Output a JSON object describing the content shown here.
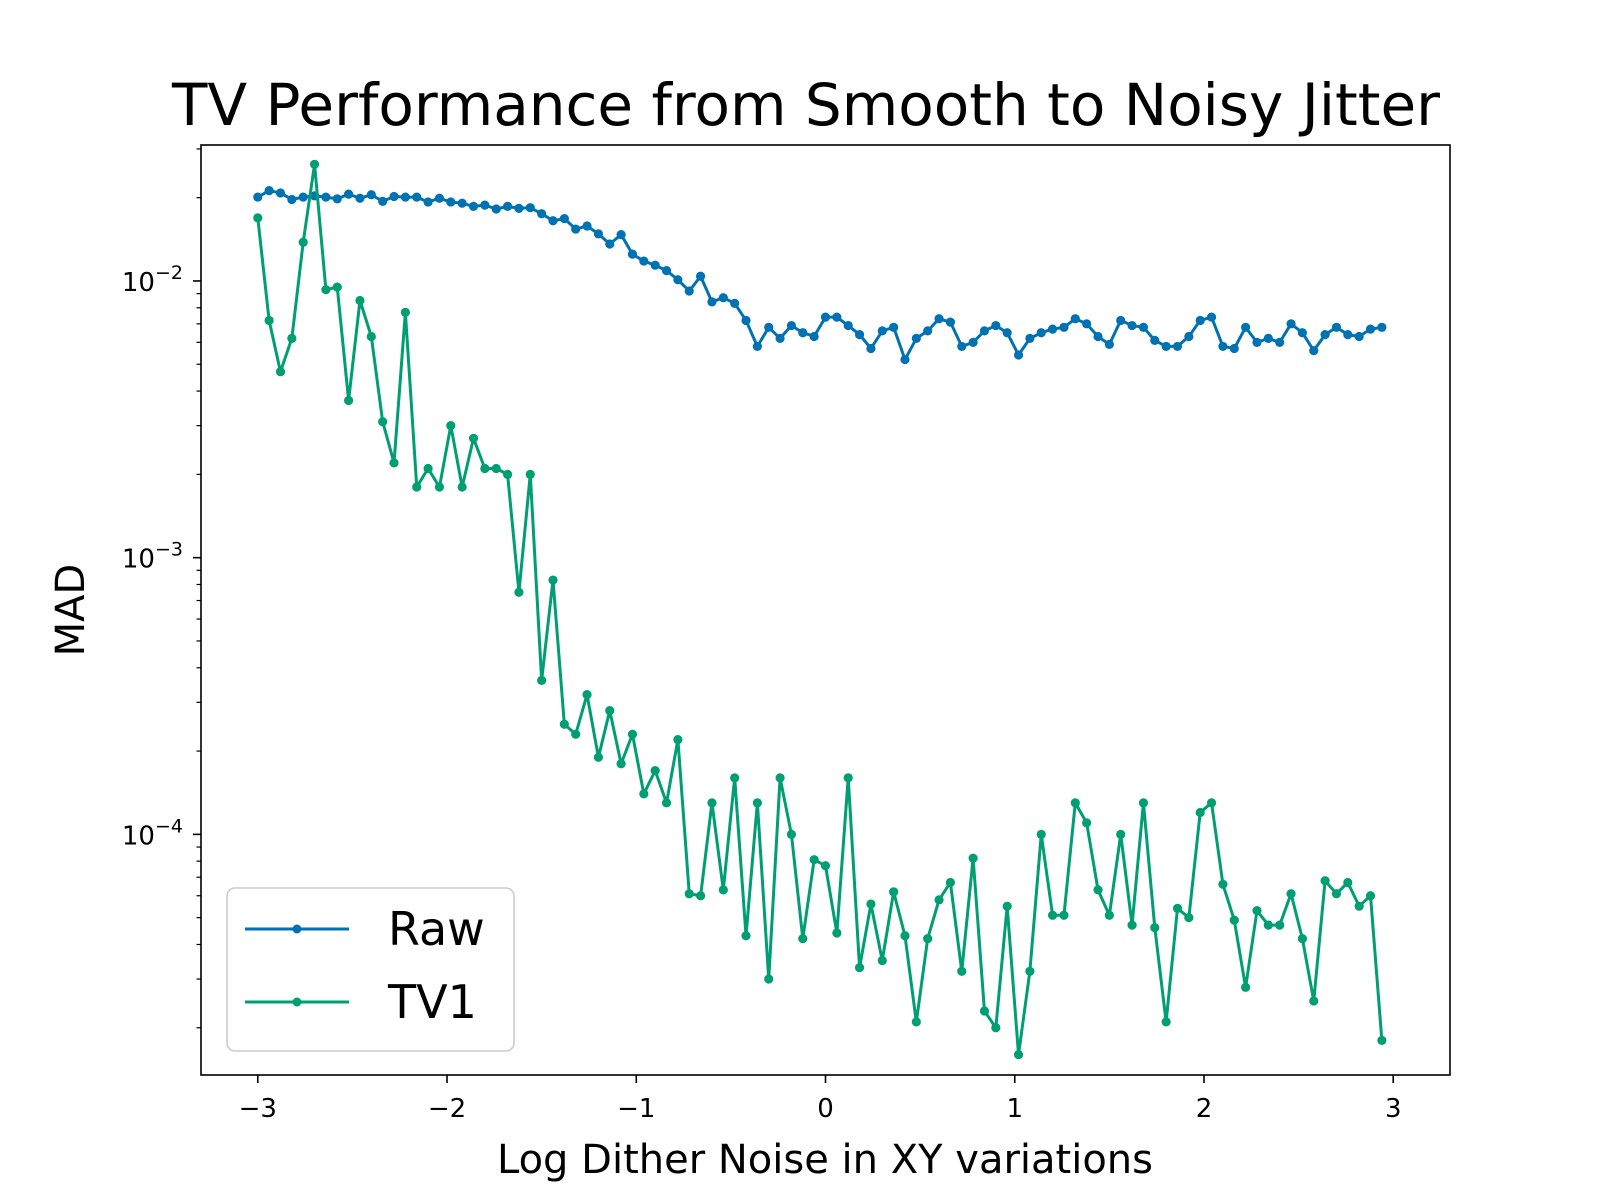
{
  "chart_data": {
    "type": "line",
    "title": "TV Performance from Smooth to Noisy Jitter",
    "xlabel": "Log Dither Noise in XY variations",
    "ylabel": "MAD",
    "yscale": "log",
    "xlim": [
      -3.3,
      3.3
    ],
    "ylim": [
      1.35e-05,
      0.031
    ],
    "grid": false,
    "legend_position": "lower-left",
    "x_ticks": [
      {
        "value": -3,
        "label": "−3"
      },
      {
        "value": -2,
        "label": "−2"
      },
      {
        "value": -1,
        "label": "−1"
      },
      {
        "value": 0,
        "label": "0"
      },
      {
        "value": 1,
        "label": "1"
      },
      {
        "value": 2,
        "label": "2"
      },
      {
        "value": 3,
        "label": "3"
      }
    ],
    "y_ticks": [
      {
        "value": 0.01,
        "base": "10",
        "exp": "−2"
      },
      {
        "value": 0.001,
        "base": "10",
        "exp": "−3"
      },
      {
        "value": 0.0001,
        "base": "10",
        "exp": "−4"
      }
    ],
    "x_start": -3.0,
    "x_step": 0.06,
    "series": [
      {
        "name": "Raw",
        "color": "#0072b2",
        "values": [
          0.0201,
          0.0212,
          0.0208,
          0.0197,
          0.0201,
          0.0203,
          0.0201,
          0.0198,
          0.0206,
          0.0199,
          0.0205,
          0.0194,
          0.0202,
          0.0201,
          0.0201,
          0.0193,
          0.0199,
          0.0193,
          0.0191,
          0.0186,
          0.0188,
          0.0182,
          0.0186,
          0.0183,
          0.0184,
          0.0175,
          0.0165,
          0.0168,
          0.0154,
          0.0158,
          0.0148,
          0.0136,
          0.0147,
          0.0125,
          0.0118,
          0.0114,
          0.0109,
          0.0101,
          0.0092,
          0.0104,
          0.0084,
          0.0087,
          0.0083,
          0.0072,
          0.0058,
          0.0068,
          0.0062,
          0.0069,
          0.0065,
          0.0063,
          0.0074,
          0.0074,
          0.0069,
          0.0064,
          0.0057,
          0.0066,
          0.0068,
          0.0052,
          0.0062,
          0.0066,
          0.0073,
          0.0071,
          0.0058,
          0.006,
          0.0066,
          0.0069,
          0.0065,
          0.0054,
          0.0062,
          0.0065,
          0.0067,
          0.0068,
          0.0073,
          0.007,
          0.0063,
          0.0059,
          0.0072,
          0.0069,
          0.0068,
          0.0061,
          0.0058,
          0.0058,
          0.0063,
          0.0072,
          0.0074,
          0.0058,
          0.0057,
          0.0068,
          0.006,
          0.0062,
          0.006,
          0.007,
          0.0065,
          0.0056,
          0.0064,
          0.0068,
          0.0064,
          0.0063,
          0.0067,
          0.0068
        ]
      },
      {
        "name": "TV1",
        "color": "#009e73",
        "values": [
          0.0169,
          0.0072,
          0.0047,
          0.0062,
          0.0138,
          0.0264,
          0.0093,
          0.0095,
          0.0037,
          0.0085,
          0.0063,
          0.0031,
          0.0022,
          0.0077,
          0.0018,
          0.0021,
          0.0018,
          0.003,
          0.0018,
          0.0027,
          0.0021,
          0.0021,
          0.002,
          0.00075,
          0.002,
          0.00036,
          0.00083,
          0.00025,
          0.00023,
          0.00032,
          0.00019,
          0.00028,
          0.00018,
          0.00023,
          0.00014,
          0.00017,
          0.00013,
          0.00022,
          6.1e-05,
          6e-05,
          0.00013,
          6.3e-05,
          0.00016,
          4.3e-05,
          0.00013,
          3e-05,
          0.00016,
          0.0001,
          4.2e-05,
          8.1e-05,
          7.7e-05,
          4.4e-05,
          0.00016,
          3.3e-05,
          5.6e-05,
          3.5e-05,
          6.2e-05,
          4.3e-05,
          2.1e-05,
          4.2e-05,
          5.8e-05,
          6.7e-05,
          3.2e-05,
          8.2e-05,
          2.3e-05,
          2e-05,
          5.5e-05,
          1.6e-05,
          3.2e-05,
          0.0001,
          5.1e-05,
          5.1e-05,
          0.00013,
          0.00011,
          6.3e-05,
          5.1e-05,
          0.0001,
          4.7e-05,
          0.00013,
          4.6e-05,
          2.1e-05,
          5.4e-05,
          5e-05,
          0.00012,
          0.00013,
          6.6e-05,
          4.9e-05,
          2.8e-05,
          5.3e-05,
          4.7e-05,
          4.7e-05,
          6.1e-05,
          4.2e-05,
          2.5e-05,
          6.8e-05,
          6.1e-05,
          6.7e-05,
          5.5e-05,
          6e-05,
          1.8e-05
        ]
      }
    ]
  }
}
